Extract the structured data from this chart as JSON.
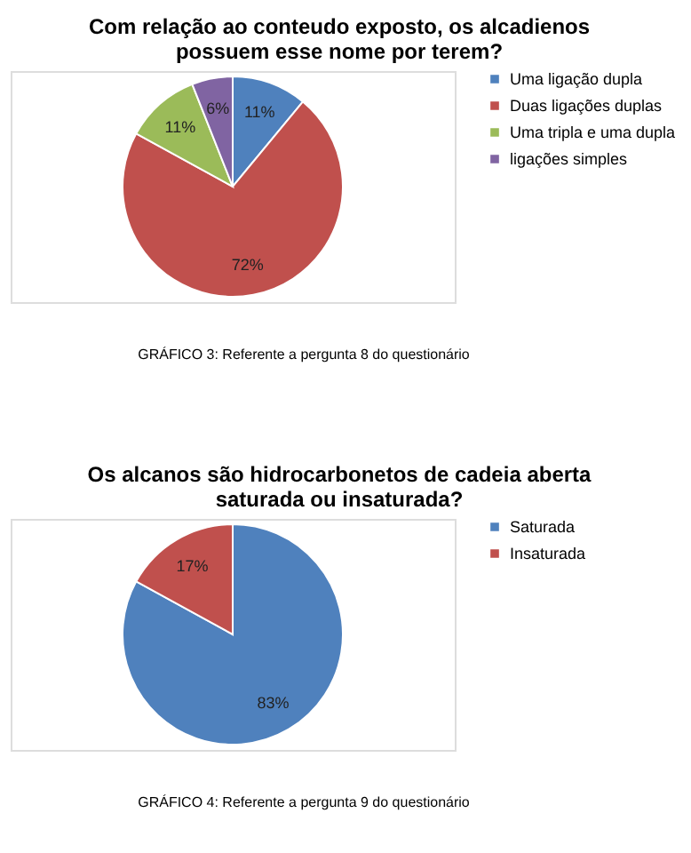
{
  "chart_data": [
    {
      "type": "pie",
      "title": [
        "Com relação ao conteudo exposto, os alcadienos",
        "possuem esse nome por terem?"
      ],
      "categories": [
        "Uma ligação dupla",
        "Duas ligações duplas",
        "Uma tripla e uma dupla",
        "ligações simples"
      ],
      "values": [
        11,
        72,
        11,
        6
      ],
      "value_labels": [
        "11%",
        "72%",
        "11%",
        "6%"
      ],
      "colors": [
        "#4f81bd",
        "#c0504d",
        "#9bbb59",
        "#8064a2"
      ],
      "legend": "right",
      "annotations": [
        "GRÁFICO 3: Referente a pergunta 8 do questionário"
      ]
    },
    {
      "type": "pie",
      "title": [
        "Os alcanos são hidrocarbonetos de cadeia aberta",
        "saturada ou insaturada?"
      ],
      "categories": [
        "Saturada",
        "Insaturada"
      ],
      "values": [
        83,
        17
      ],
      "value_labels": [
        "83%",
        "17%"
      ],
      "colors": [
        "#4f81bd",
        "#c0504d"
      ],
      "legend": "right",
      "annotations": [
        "GRÁFICO 4: Referente a pergunta 9 do questionário"
      ]
    }
  ]
}
